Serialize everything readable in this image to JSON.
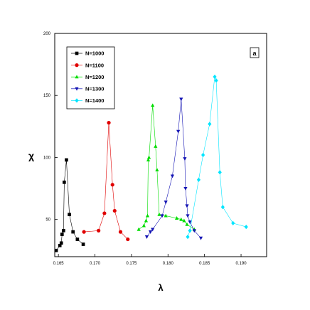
{
  "chart_data": {
    "type": "scatter",
    "title": "",
    "panel_label": "a",
    "xlabel": "λ",
    "ylabel": "χ",
    "xlim": [
      0.1645,
      0.1935
    ],
    "ylim": [
      20,
      200
    ],
    "x_ticks": [
      {
        "value": 0.165,
        "label": "0.165"
      },
      {
        "value": 0.17,
        "label": "0.170"
      },
      {
        "value": 0.175,
        "label": "0.175"
      },
      {
        "value": 0.18,
        "label": "0.180"
      },
      {
        "value": 0.185,
        "label": "0.185"
      },
      {
        "value": 0.19,
        "label": "0.190"
      }
    ],
    "y_ticks": [
      {
        "value": 50,
        "label": "50"
      },
      {
        "value": 100,
        "label": "100"
      },
      {
        "value": 150,
        "label": "150"
      },
      {
        "value": 200,
        "label": "200"
      }
    ],
    "legend_position": "top-left",
    "grid": false,
    "series": [
      {
        "name": "N=1000",
        "color": "#000000",
        "marker": "square",
        "points": [
          [
            0.1647,
            25
          ],
          [
            0.1652,
            29
          ],
          [
            0.1654,
            31
          ],
          [
            0.1655,
            38
          ],
          [
            0.1657,
            41
          ],
          [
            0.1658,
            80
          ],
          [
            0.1661,
            98
          ],
          [
            0.1665,
            54
          ],
          [
            0.167,
            40
          ],
          [
            0.1676,
            34
          ],
          [
            0.1684,
            30
          ]
        ]
      },
      {
        "name": "N=1100",
        "color": "#e00000",
        "marker": "circle",
        "points": [
          [
            0.1685,
            40
          ],
          [
            0.1705,
            41
          ],
          [
            0.1713,
            55
          ],
          [
            0.1719,
            128
          ],
          [
            0.1724,
            78
          ],
          [
            0.1727,
            57
          ],
          [
            0.1735,
            40
          ],
          [
            0.1745,
            34
          ]
        ]
      },
      {
        "name": "N=1200",
        "color": "#00dd00",
        "marker": "triangle-up",
        "points": [
          [
            0.176,
            42
          ],
          [
            0.1767,
            45
          ],
          [
            0.177,
            49
          ],
          [
            0.1772,
            53
          ],
          [
            0.1773,
            98
          ],
          [
            0.1774,
            100
          ],
          [
            0.1779,
            142
          ],
          [
            0.1783,
            109
          ],
          [
            0.1785,
            90
          ],
          [
            0.1788,
            54
          ],
          [
            0.1797,
            53
          ],
          [
            0.1812,
            51
          ],
          [
            0.1818,
            50
          ],
          [
            0.1822,
            49
          ],
          [
            0.1826,
            46
          ],
          [
            0.1836,
            42
          ]
        ]
      },
      {
        "name": "N=1300",
        "color": "#1414b4",
        "marker": "triangle-down",
        "points": [
          [
            0.1771,
            36
          ],
          [
            0.1776,
            40
          ],
          [
            0.1779,
            42
          ],
          [
            0.1792,
            53
          ],
          [
            0.1797,
            64
          ],
          [
            0.1806,
            85
          ],
          [
            0.1814,
            121
          ],
          [
            0.1818,
            147
          ],
          [
            0.1823,
            99
          ],
          [
            0.1824,
            75
          ],
          [
            0.1826,
            61
          ],
          [
            0.1827,
            53
          ],
          [
            0.183,
            48
          ],
          [
            0.1836,
            41
          ],
          [
            0.1845,
            35
          ]
        ]
      },
      {
        "name": "N=1400",
        "color": "#00e5ff",
        "marker": "diamond",
        "points": [
          [
            0.1827,
            36
          ],
          [
            0.183,
            41
          ],
          [
            0.1842,
            82
          ],
          [
            0.1848,
            102
          ],
          [
            0.1857,
            127
          ],
          [
            0.1864,
            165
          ],
          [
            0.1866,
            162
          ],
          [
            0.1871,
            88
          ],
          [
            0.1875,
            60
          ],
          [
            0.1889,
            47
          ],
          [
            0.1907,
            44
          ]
        ]
      }
    ]
  }
}
